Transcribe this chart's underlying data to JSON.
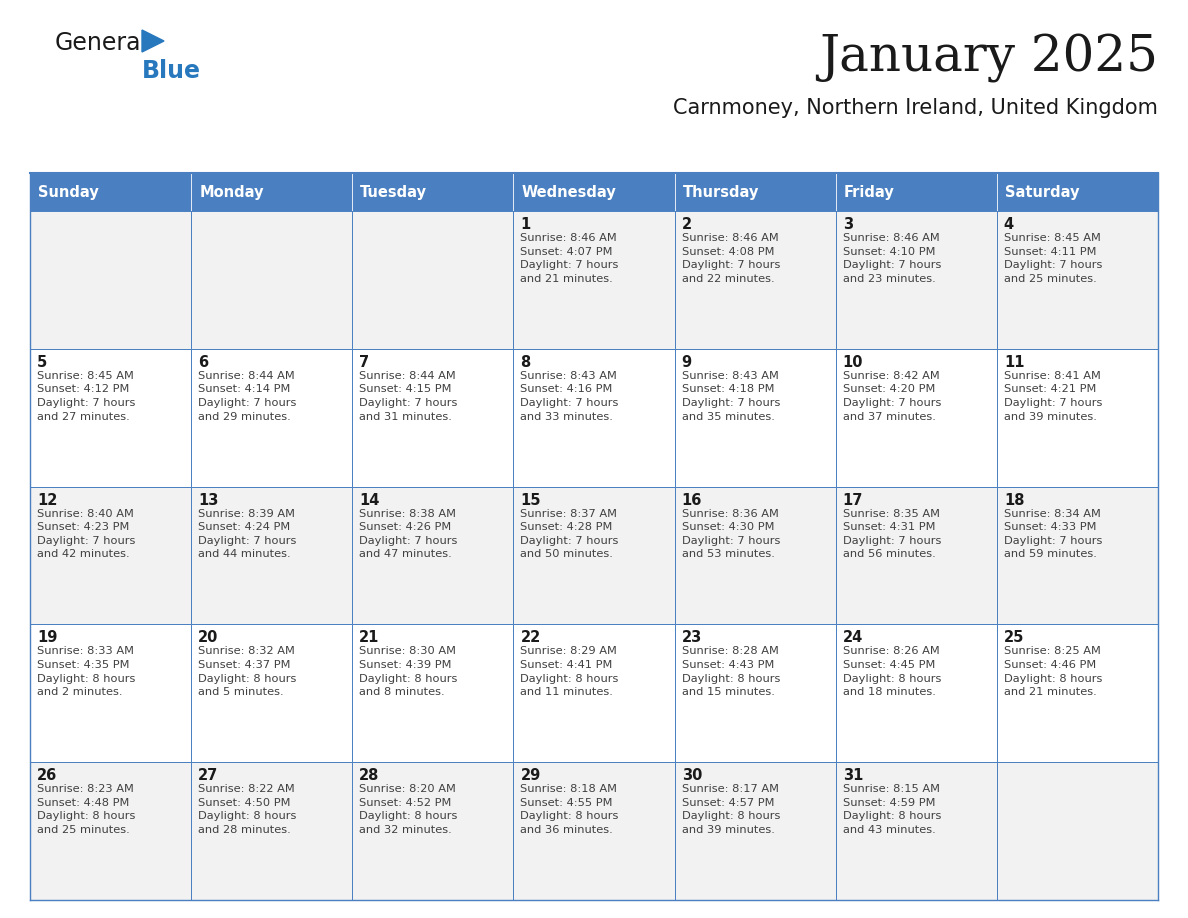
{
  "title": "January 2025",
  "subtitle": "Carnmoney, Northern Ireland, United Kingdom",
  "header_bg": "#4a7fc1",
  "header_text_color": "#ffffff",
  "cell_bg_light": "#f2f2f2",
  "cell_bg_white": "#ffffff",
  "border_color": "#4a7fc1",
  "day_names": [
    "Sunday",
    "Monday",
    "Tuesday",
    "Wednesday",
    "Thursday",
    "Friday",
    "Saturday"
  ],
  "title_color": "#1a1a1a",
  "subtitle_color": "#1a1a1a",
  "cell_text_color": "#404040",
  "day_num_color": "#1a1a1a",
  "logo_general_color": "#1a1a1a",
  "logo_blue_color": "#2878be",
  "logo_triangle_color": "#2878be",
  "weeks": [
    [
      {
        "day": "",
        "info": ""
      },
      {
        "day": "",
        "info": ""
      },
      {
        "day": "",
        "info": ""
      },
      {
        "day": "1",
        "info": "Sunrise: 8:46 AM\nSunset: 4:07 PM\nDaylight: 7 hours\nand 21 minutes."
      },
      {
        "day": "2",
        "info": "Sunrise: 8:46 AM\nSunset: 4:08 PM\nDaylight: 7 hours\nand 22 minutes."
      },
      {
        "day": "3",
        "info": "Sunrise: 8:46 AM\nSunset: 4:10 PM\nDaylight: 7 hours\nand 23 minutes."
      },
      {
        "day": "4",
        "info": "Sunrise: 8:45 AM\nSunset: 4:11 PM\nDaylight: 7 hours\nand 25 minutes."
      }
    ],
    [
      {
        "day": "5",
        "info": "Sunrise: 8:45 AM\nSunset: 4:12 PM\nDaylight: 7 hours\nand 27 minutes."
      },
      {
        "day": "6",
        "info": "Sunrise: 8:44 AM\nSunset: 4:14 PM\nDaylight: 7 hours\nand 29 minutes."
      },
      {
        "day": "7",
        "info": "Sunrise: 8:44 AM\nSunset: 4:15 PM\nDaylight: 7 hours\nand 31 minutes."
      },
      {
        "day": "8",
        "info": "Sunrise: 8:43 AM\nSunset: 4:16 PM\nDaylight: 7 hours\nand 33 minutes."
      },
      {
        "day": "9",
        "info": "Sunrise: 8:43 AM\nSunset: 4:18 PM\nDaylight: 7 hours\nand 35 minutes."
      },
      {
        "day": "10",
        "info": "Sunrise: 8:42 AM\nSunset: 4:20 PM\nDaylight: 7 hours\nand 37 minutes."
      },
      {
        "day": "11",
        "info": "Sunrise: 8:41 AM\nSunset: 4:21 PM\nDaylight: 7 hours\nand 39 minutes."
      }
    ],
    [
      {
        "day": "12",
        "info": "Sunrise: 8:40 AM\nSunset: 4:23 PM\nDaylight: 7 hours\nand 42 minutes."
      },
      {
        "day": "13",
        "info": "Sunrise: 8:39 AM\nSunset: 4:24 PM\nDaylight: 7 hours\nand 44 minutes."
      },
      {
        "day": "14",
        "info": "Sunrise: 8:38 AM\nSunset: 4:26 PM\nDaylight: 7 hours\nand 47 minutes."
      },
      {
        "day": "15",
        "info": "Sunrise: 8:37 AM\nSunset: 4:28 PM\nDaylight: 7 hours\nand 50 minutes."
      },
      {
        "day": "16",
        "info": "Sunrise: 8:36 AM\nSunset: 4:30 PM\nDaylight: 7 hours\nand 53 minutes."
      },
      {
        "day": "17",
        "info": "Sunrise: 8:35 AM\nSunset: 4:31 PM\nDaylight: 7 hours\nand 56 minutes."
      },
      {
        "day": "18",
        "info": "Sunrise: 8:34 AM\nSunset: 4:33 PM\nDaylight: 7 hours\nand 59 minutes."
      }
    ],
    [
      {
        "day": "19",
        "info": "Sunrise: 8:33 AM\nSunset: 4:35 PM\nDaylight: 8 hours\nand 2 minutes."
      },
      {
        "day": "20",
        "info": "Sunrise: 8:32 AM\nSunset: 4:37 PM\nDaylight: 8 hours\nand 5 minutes."
      },
      {
        "day": "21",
        "info": "Sunrise: 8:30 AM\nSunset: 4:39 PM\nDaylight: 8 hours\nand 8 minutes."
      },
      {
        "day": "22",
        "info": "Sunrise: 8:29 AM\nSunset: 4:41 PM\nDaylight: 8 hours\nand 11 minutes."
      },
      {
        "day": "23",
        "info": "Sunrise: 8:28 AM\nSunset: 4:43 PM\nDaylight: 8 hours\nand 15 minutes."
      },
      {
        "day": "24",
        "info": "Sunrise: 8:26 AM\nSunset: 4:45 PM\nDaylight: 8 hours\nand 18 minutes."
      },
      {
        "day": "25",
        "info": "Sunrise: 8:25 AM\nSunset: 4:46 PM\nDaylight: 8 hours\nand 21 minutes."
      }
    ],
    [
      {
        "day": "26",
        "info": "Sunrise: 8:23 AM\nSunset: 4:48 PM\nDaylight: 8 hours\nand 25 minutes."
      },
      {
        "day": "27",
        "info": "Sunrise: 8:22 AM\nSunset: 4:50 PM\nDaylight: 8 hours\nand 28 minutes."
      },
      {
        "day": "28",
        "info": "Sunrise: 8:20 AM\nSunset: 4:52 PM\nDaylight: 8 hours\nand 32 minutes."
      },
      {
        "day": "29",
        "info": "Sunrise: 8:18 AM\nSunset: 4:55 PM\nDaylight: 8 hours\nand 36 minutes."
      },
      {
        "day": "30",
        "info": "Sunrise: 8:17 AM\nSunset: 4:57 PM\nDaylight: 8 hours\nand 39 minutes."
      },
      {
        "day": "31",
        "info": "Sunrise: 8:15 AM\nSunset: 4:59 PM\nDaylight: 8 hours\nand 43 minutes."
      },
      {
        "day": "",
        "info": ""
      }
    ]
  ]
}
